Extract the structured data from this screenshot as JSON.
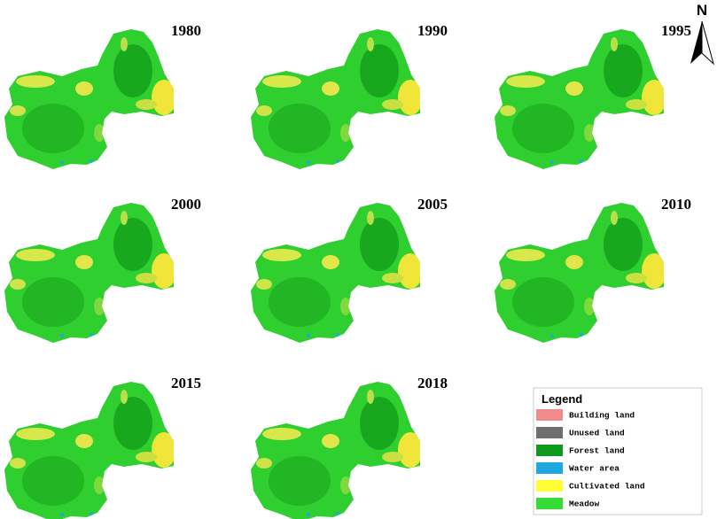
{
  "north": "N",
  "panels": [
    "1980",
    "1990",
    "1995",
    "2000",
    "2005",
    "2010",
    "2015",
    "2018"
  ],
  "legend": {
    "title": "Legend",
    "items": [
      {
        "label": "Building land",
        "color": "#f28b8b"
      },
      {
        "label": "Unused land",
        "color": "#6e6e6e"
      },
      {
        "label": "Forest land",
        "color": "#0e9a1a"
      },
      {
        "label": "Water area",
        "color": "#1ea7e1"
      },
      {
        "label": "Cultivated land",
        "color": "#ffff33"
      },
      {
        "label": "Meadow",
        "color": "#33dd33"
      }
    ]
  }
}
